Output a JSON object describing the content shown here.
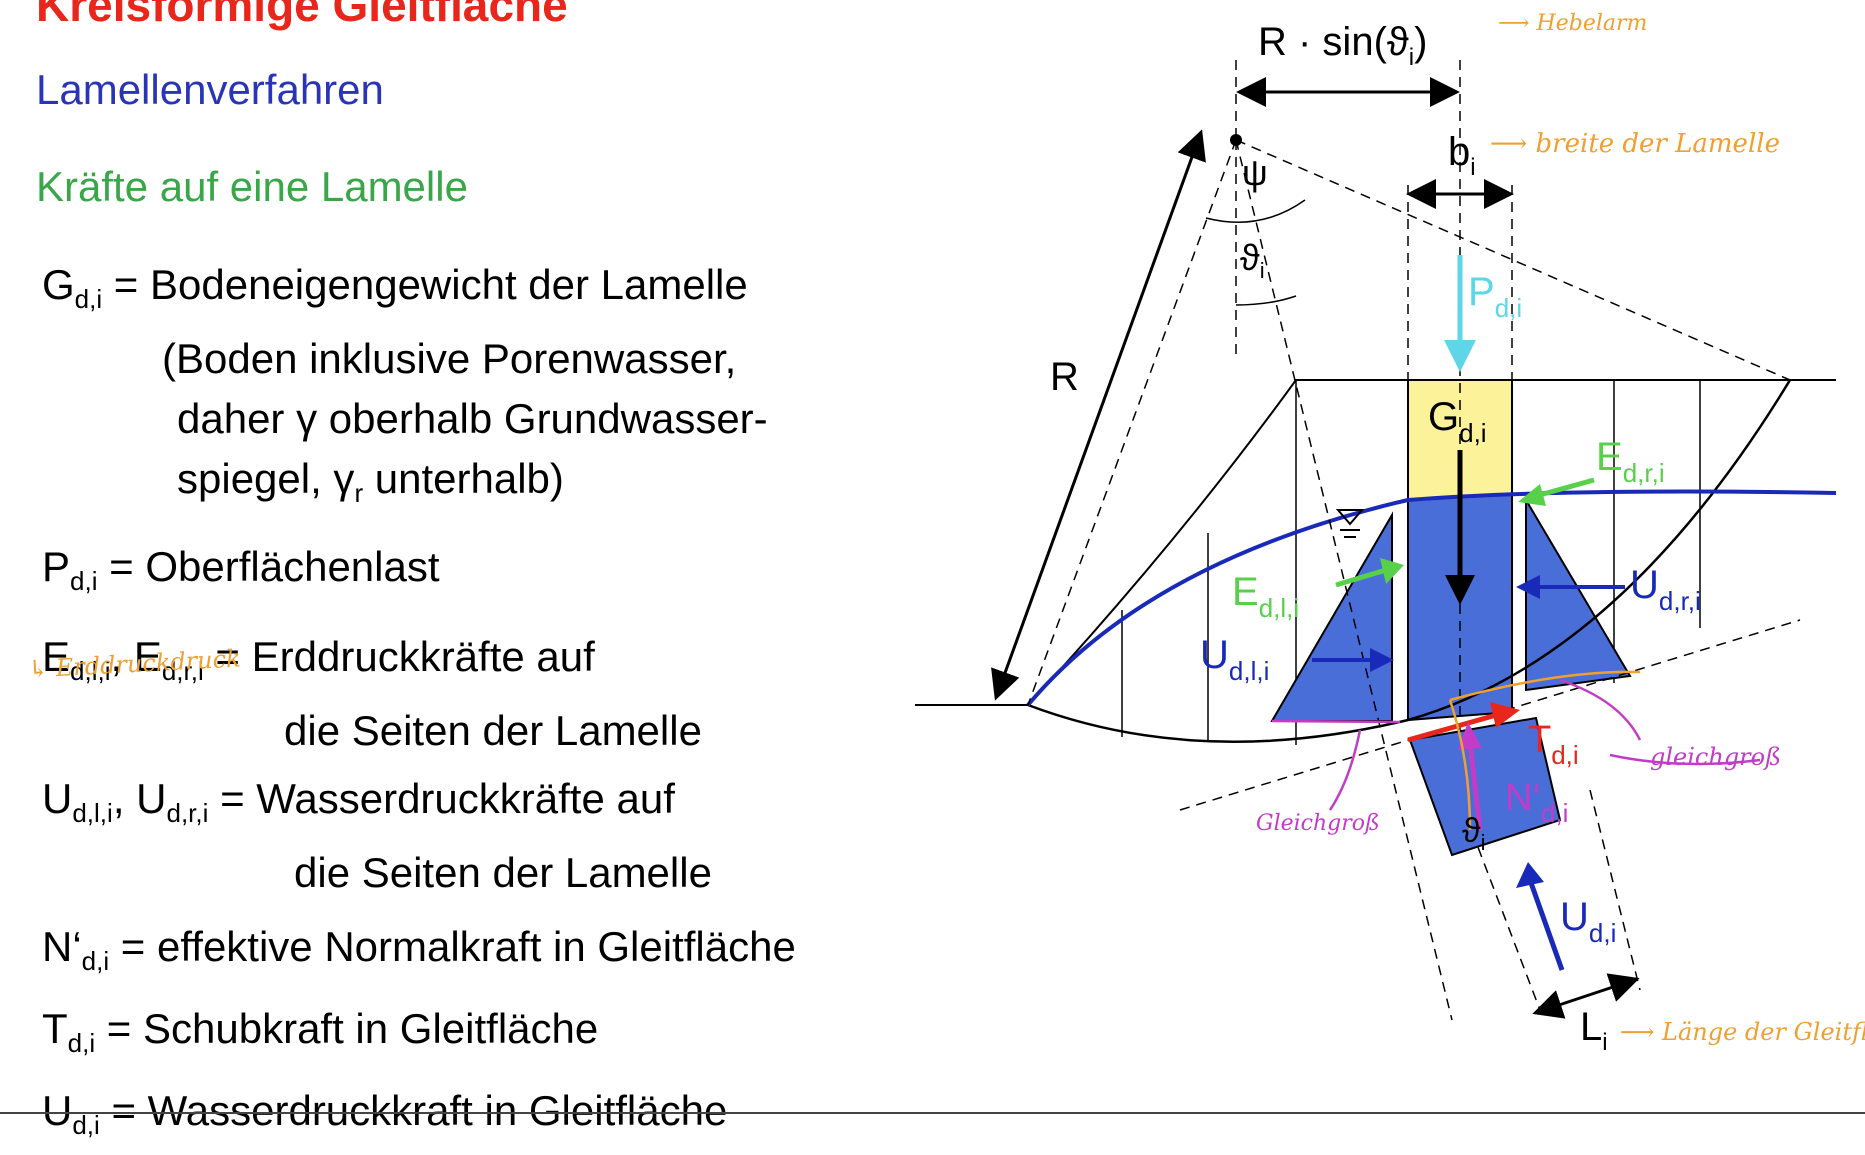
{
  "heading": {
    "title": "Kreisförmige Gleitfläche",
    "subtitle": "Lamellenverfahren",
    "section": "Kräfte auf eine Lamelle"
  },
  "definitions": [
    {
      "symbol": "G",
      "sub": "d,i",
      "text": " = Bodeneigengewicht der Lamelle"
    },
    {
      "line2": "(Boden inklusive Porenwasser,"
    },
    {
      "line3": "daher γ oberhalb Grundwasser-"
    },
    {
      "line4a": "spiegel, γ",
      "line4sub": "r",
      "line4b": " unterhalb)"
    },
    {
      "symbol": "P",
      "sub": "d,i",
      "text": " = Oberflächenlast"
    },
    {
      "symbol1": "E",
      "sub1": "d,l,i",
      "sep": ", ",
      "symbol2": "E",
      "sub2": "d,r,i",
      "text": " = Erddruckkräfte auf",
      "cont": "die Seiten der Lamelle"
    },
    {
      "symbol1": "U",
      "sub1": "d,l,i",
      "sep": ", ",
      "symbol2": "U",
      "sub2": "d,r,i",
      "text": " = Wasserdruckkräfte auf",
      "cont": "die Seiten der Lamelle"
    },
    {
      "symbol": "N‘",
      "sub": "d,i",
      "text": " = effektive Normalkraft in Gleitfläche"
    },
    {
      "symbol": "T",
      "sub": "d,i",
      "text": " = Schubkraft in Gleitfläche"
    },
    {
      "symbol": "U",
      "sub": "d,i",
      "text": " = Wasserdruckkraft in Gleitfläche"
    }
  ],
  "handwritten": {
    "erddruck": "↳ Erddruckdruck",
    "hebelarm": "⟶ Hebelarm",
    "breite": "⟶ breite der Lamelle",
    "laenge": "⟶ Länge der Gleitfläche",
    "gleichgross_left": "Gleichgroß",
    "gleichgross_right": "gleichgroß"
  },
  "diagram_labels": {
    "lever": "R · sin(ϑ",
    "lever_sub": "i",
    "lever_close": ")",
    "b": "b",
    "b_sub": "i",
    "psi": "ψ",
    "theta": "ϑ",
    "theta_sub": "i",
    "R": "R",
    "P": "P",
    "P_sub": "d,i",
    "G": "G",
    "G_sub": "d,i",
    "Er": "E",
    "Er_sub": "d,r,i",
    "El": "E",
    "El_sub": "d,l,i",
    "Ur": "U",
    "Ur_sub": "d,r,i",
    "Ul": "U",
    "Ul_sub": "d,l,i",
    "T": "T",
    "T_sub": "d,i",
    "N": "N‘",
    "N_sub": "d,i",
    "theta2": "ϑ",
    "theta2_sub": "i",
    "U": "U",
    "U_sub": "d,i",
    "L": "L",
    "L_sub": "i"
  },
  "colors": {
    "title": "#e8261c",
    "subtitle": "#2a34b8",
    "section": "#3aa64a",
    "water": "#4a6ed8",
    "slice": "#fbf29a",
    "earth_force": "#58d14a",
    "surface_load": "#5fd6e8",
    "annotation_orange": "#f0a030",
    "annotation_magenta": "#c23cc8"
  }
}
